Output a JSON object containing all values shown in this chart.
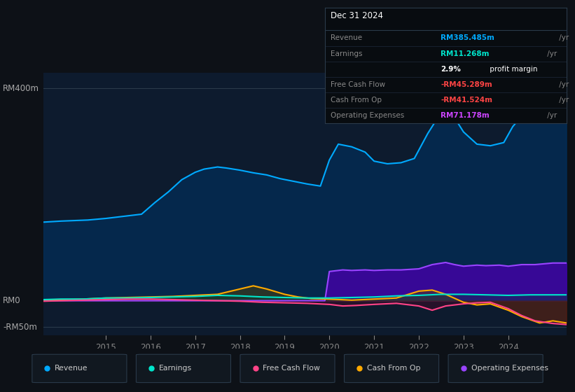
{
  "bg_color": "#0d1117",
  "plot_bg_color": "#0d1b2e",
  "title": "Dec 31 2024",
  "ylabel_top": "RM400m",
  "ylabel_zero": "RM0",
  "ylabel_neg": "-RM50m",
  "ylim": [
    -65,
    430
  ],
  "xlim_start": 2013.6,
  "xlim_end": 2025.3,
  "xticks": [
    2015,
    2016,
    2017,
    2018,
    2019,
    2020,
    2021,
    2022,
    2023,
    2024
  ],
  "legend_items": [
    {
      "label": "Revenue",
      "color": "#00aaff"
    },
    {
      "label": "Earnings",
      "color": "#00e5cc"
    },
    {
      "label": "Free Cash Flow",
      "color": "#ff4488"
    },
    {
      "label": "Cash From Op",
      "color": "#ffaa00"
    },
    {
      "label": "Operating Expenses",
      "color": "#9944ff"
    }
  ],
  "info_rows": [
    {
      "label": "Revenue",
      "value": "RM385.485m",
      "unit": " /yr",
      "value_color": "#00aaff"
    },
    {
      "label": "Earnings",
      "value": "RM11.268m",
      "unit": " /yr",
      "value_color": "#00e5cc"
    },
    {
      "label": "",
      "value": "2.9%",
      "unit": " profit margin",
      "value_color": "#ffffff",
      "unit_color": "#ffffff"
    },
    {
      "label": "Free Cash Flow",
      "value": "-RM45.289m",
      "unit": " /yr",
      "value_color": "#ff4444"
    },
    {
      "label": "Cash From Op",
      "value": "-RM41.524m",
      "unit": " /yr",
      "value_color": "#ff4444"
    },
    {
      "label": "Operating Expenses",
      "value": "RM71.178m",
      "unit": " /yr",
      "value_color": "#cc44ff"
    }
  ],
  "revenue": {
    "x": [
      2013.6,
      2014.0,
      2014.3,
      2014.6,
      2015.0,
      2015.3,
      2015.5,
      2015.8,
      2016.1,
      2016.4,
      2016.7,
      2017.0,
      2017.2,
      2017.5,
      2017.7,
      2018.0,
      2018.3,
      2018.6,
      2018.9,
      2019.2,
      2019.5,
      2019.8,
      2020.0,
      2020.2,
      2020.5,
      2020.8,
      2021.0,
      2021.3,
      2021.6,
      2021.9,
      2022.2,
      2022.5,
      2022.7,
      2023.0,
      2023.3,
      2023.6,
      2023.9,
      2024.1,
      2024.4,
      2024.7,
      2025.0,
      2025.3
    ],
    "y": [
      148,
      150,
      151,
      152,
      155,
      158,
      160,
      163,
      185,
      205,
      228,
      242,
      248,
      252,
      250,
      246,
      241,
      237,
      230,
      225,
      220,
      216,
      265,
      295,
      290,
      280,
      263,
      258,
      260,
      268,
      315,
      355,
      358,
      318,
      295,
      292,
      298,
      328,
      358,
      390,
      395,
      385
    ]
  },
  "earnings": {
    "x": [
      2013.6,
      2014.0,
      2014.5,
      2015.0,
      2015.5,
      2016.0,
      2016.5,
      2017.0,
      2017.5,
      2018.0,
      2018.5,
      2019.0,
      2019.5,
      2020.0,
      2020.5,
      2021.0,
      2021.5,
      2022.0,
      2022.5,
      2023.0,
      2023.5,
      2024.0,
      2024.5,
      2025.0,
      2025.3
    ],
    "y": [
      2,
      3,
      3,
      5,
      5,
      6,
      7,
      8,
      10,
      9,
      7,
      6,
      5,
      5,
      6,
      7,
      9,
      10,
      12,
      12,
      11,
      10,
      11,
      11,
      11
    ]
  },
  "free_cash_flow": {
    "x": [
      2013.6,
      2014.0,
      2014.5,
      2015.0,
      2015.5,
      2016.0,
      2016.5,
      2017.0,
      2017.5,
      2018.0,
      2018.5,
      2019.0,
      2019.5,
      2020.0,
      2020.3,
      2020.6,
      2021.0,
      2021.5,
      2022.0,
      2022.3,
      2022.6,
      2023.0,
      2023.3,
      2023.6,
      2024.0,
      2024.3,
      2024.6,
      2025.0,
      2025.3
    ],
    "y": [
      -1,
      0,
      1,
      2,
      3,
      3,
      2,
      1,
      0,
      -1,
      -3,
      -4,
      -5,
      -7,
      -10,
      -9,
      -7,
      -5,
      -10,
      -18,
      -10,
      -6,
      -4,
      -3,
      -15,
      -28,
      -38,
      -43,
      -45
    ]
  },
  "cash_from_op": {
    "x": [
      2013.6,
      2014.0,
      2014.5,
      2015.0,
      2015.5,
      2016.0,
      2016.5,
      2017.0,
      2017.5,
      2018.0,
      2018.3,
      2018.6,
      2019.0,
      2019.3,
      2019.6,
      2020.0,
      2020.5,
      2021.0,
      2021.5,
      2022.0,
      2022.3,
      2022.6,
      2023.0,
      2023.3,
      2023.6,
      2024.0,
      2024.3,
      2024.7,
      2025.0,
      2025.3
    ],
    "y": [
      1,
      2,
      3,
      5,
      6,
      7,
      8,
      10,
      12,
      22,
      28,
      22,
      12,
      7,
      4,
      3,
      1,
      3,
      5,
      18,
      20,
      12,
      -3,
      -8,
      -6,
      -18,
      -30,
      -42,
      -38,
      -42
    ]
  },
  "op_expenses": {
    "x": [
      2013.6,
      2019.8,
      2019.9,
      2020.0,
      2020.3,
      2020.5,
      2020.8,
      2021.0,
      2021.3,
      2021.6,
      2022.0,
      2022.3,
      2022.6,
      2022.8,
      2023.0,
      2023.3,
      2023.5,
      2023.8,
      2024.0,
      2024.3,
      2024.6,
      2025.0,
      2025.3
    ],
    "y": [
      0,
      0,
      0,
      55,
      58,
      57,
      58,
      57,
      58,
      58,
      60,
      68,
      72,
      68,
      65,
      67,
      66,
      67,
      65,
      68,
      68,
      71,
      71
    ]
  }
}
